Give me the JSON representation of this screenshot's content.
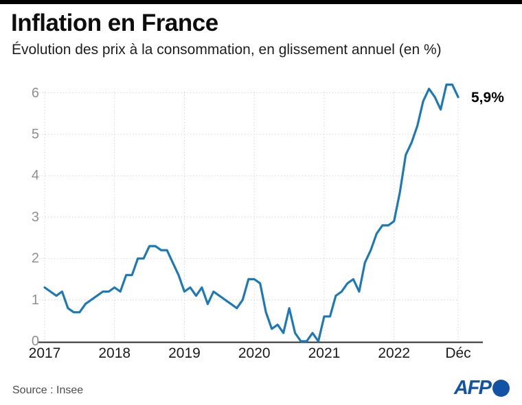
{
  "header": {
    "title": "Inflation en France",
    "subtitle": "Évolution des prix à la consommation, en glissement annuel (en %)"
  },
  "chart_data": {
    "type": "line",
    "title": "Inflation en France",
    "subtitle": "Évolution des prix à la consommation, en glissement annuel (en %)",
    "unit": "%",
    "x_range": [
      "2017-01",
      "2022-12"
    ],
    "x_tick_labels": [
      "2017",
      "2018",
      "2019",
      "2020",
      "2021",
      "2022",
      "Déc"
    ],
    "y_ticks": [
      0,
      1,
      2,
      3,
      4,
      5,
      6
    ],
    "ylim": [
      0,
      6.4
    ],
    "grid": "dotted",
    "legend": "none",
    "annotation": {
      "text": "5,9%",
      "value": 5.9,
      "position": "end-of-line"
    },
    "series": [
      {
        "name": "Prix à la consommation, glissement annuel (%)",
        "start": "2017-01",
        "monthly_values": [
          1.3,
          1.2,
          1.1,
          1.2,
          0.8,
          0.7,
          0.7,
          0.9,
          1.0,
          1.1,
          1.2,
          1.2,
          1.3,
          1.2,
          1.6,
          1.6,
          2.0,
          2.0,
          2.3,
          2.3,
          2.2,
          2.2,
          1.9,
          1.6,
          1.2,
          1.3,
          1.1,
          1.3,
          0.9,
          1.2,
          1.1,
          1.0,
          0.9,
          0.8,
          1.0,
          1.5,
          1.5,
          1.4,
          0.7,
          0.3,
          0.4,
          0.2,
          0.8,
          0.2,
          0.0,
          0.0,
          0.2,
          0.0,
          0.6,
          0.6,
          1.1,
          1.2,
          1.4,
          1.5,
          1.2,
          1.9,
          2.2,
          2.6,
          2.8,
          2.8,
          2.9,
          3.6,
          4.5,
          4.8,
          5.2,
          5.8,
          6.1,
          5.9,
          5.6,
          6.2,
          6.2,
          5.9
        ]
      }
    ]
  },
  "footer": {
    "source": "Source : Insee",
    "logo_text": "AFP"
  },
  "colors": {
    "line": "#1c79b5",
    "grid": "#cbcbcb",
    "axis": "#2b2b2b",
    "afp_blue": "#1353a5",
    "topbar": "#000000"
  }
}
